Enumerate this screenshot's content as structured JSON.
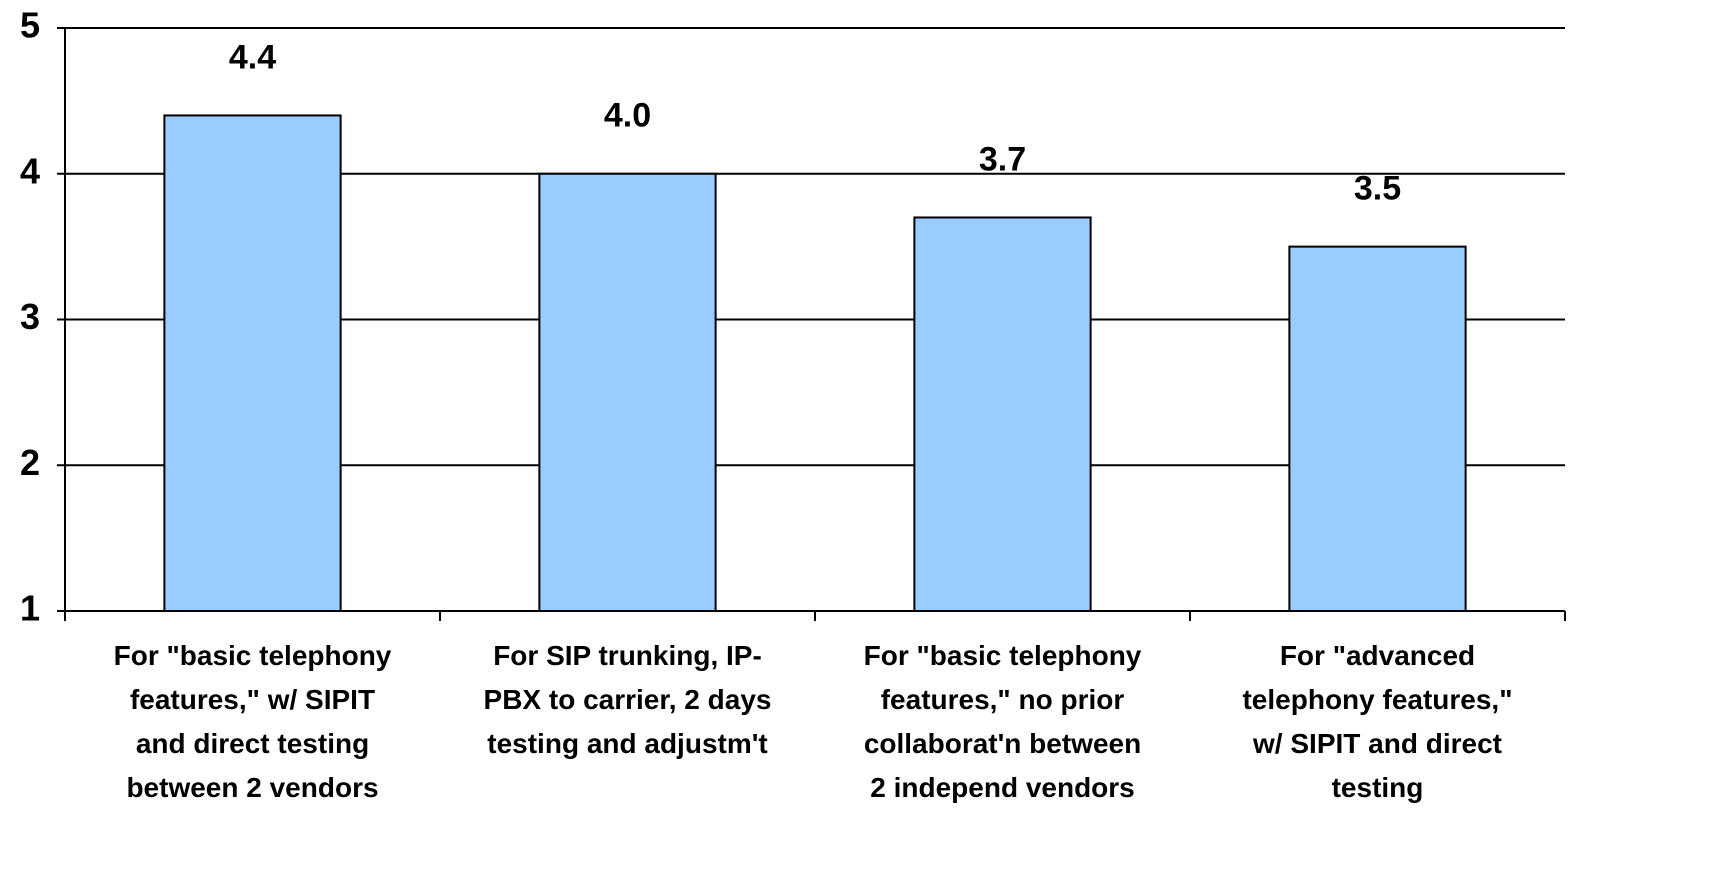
{
  "chart_data": {
    "type": "bar",
    "categories": [
      "For \"basic telephony\nfeatures,\" w/ SIPIT\nand direct testing\nbetween 2 vendors",
      "For SIP trunking, IP-\nPBX to carrier, 2 days\ntesting and adjustm't",
      "For \"basic telephony\nfeatures,\" no prior\ncollaborat'n between\n2 independ vendors",
      "For \"advanced\ntelephony features,\"\nw/ SIPIT and direct\ntesting"
    ],
    "values": [
      4.4,
      4.0,
      3.7,
      3.5
    ],
    "value_labels": [
      "4.4",
      "4.0",
      "3.7",
      "3.5"
    ],
    "color": "#99ccff",
    "ylim": [
      1,
      5
    ],
    "yticks": [
      1,
      2,
      3,
      4,
      5
    ],
    "grid": true
  }
}
